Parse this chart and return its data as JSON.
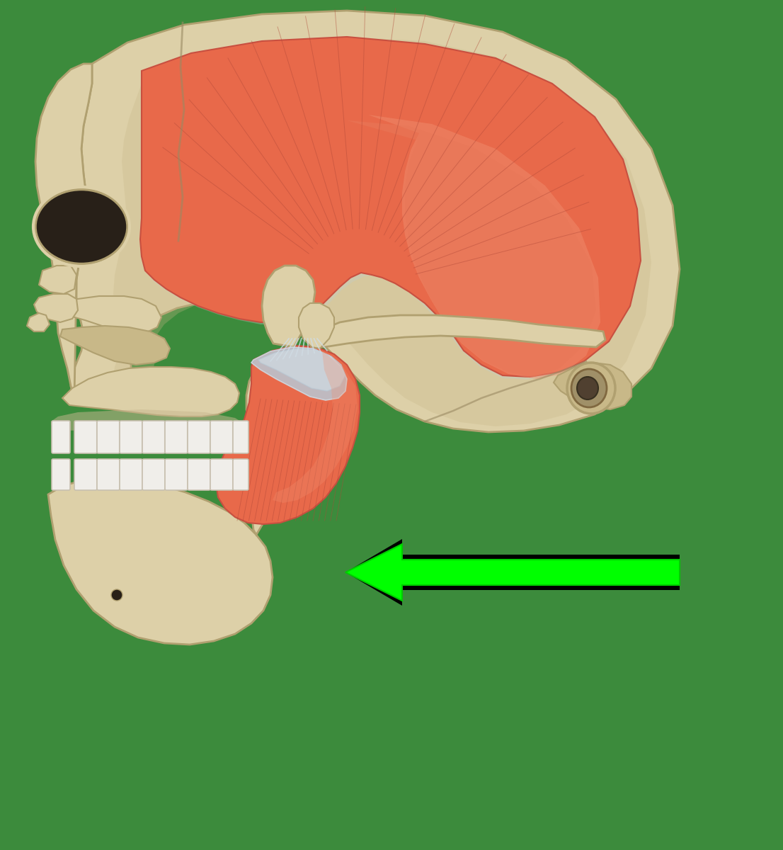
{
  "bg": "#3c8b3c",
  "skull_light": "#ddd0a8",
  "skull_mid": "#c8b888",
  "skull_dark": "#b0a070",
  "skull_shadow": "#98886a",
  "muscle_orange": "#e8694a",
  "muscle_light": "#f09070",
  "muscle_dark": "#c85040",
  "muscle_pink": "#f0a888",
  "tendon_blue": "#b8c8d4",
  "tendon_light": "#d0dce4",
  "teeth_white": "#f0eeea",
  "teeth_edge": "#c8c0b0",
  "arrow_green": "#00ff00",
  "arrow_black": "#000000",
  "fig_w": 11.06,
  "fig_h": 12.0,
  "dpi": 100
}
